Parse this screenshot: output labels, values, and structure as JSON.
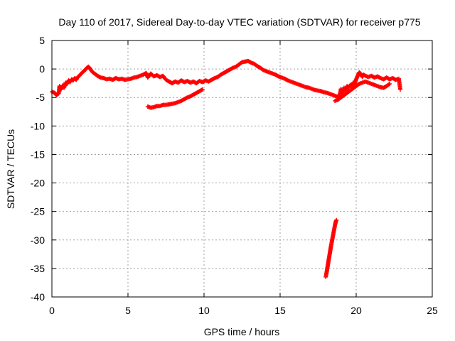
{
  "chart_data": {
    "type": "scatter",
    "title": "Day 110 of 2017, Sidereal Day-to-day VTEC variation (SDTVAR) for receiver p775",
    "xlabel": "GPS time / hours",
    "ylabel": "SDTVAR / TECUs",
    "xlim": [
      0,
      25
    ],
    "ylim": [
      -40,
      5
    ],
    "x_ticks": [
      0,
      5,
      10,
      15,
      20,
      25
    ],
    "y_ticks": [
      5,
      0,
      -5,
      -10,
      -15,
      -20,
      -25,
      -30,
      -35,
      -40
    ],
    "grid": true,
    "marker": "plus",
    "color": "#ff0000",
    "series": [
      {
        "name": "main trace",
        "points": [
          [
            0.0,
            -4.0
          ],
          [
            0.2,
            -4.2
          ],
          [
            0.3,
            -4.6
          ],
          [
            0.45,
            -4.3
          ],
          [
            0.5,
            -3.0
          ],
          [
            0.6,
            -3.6
          ],
          [
            0.7,
            -2.9
          ],
          [
            0.8,
            -3.3
          ],
          [
            0.9,
            -2.4
          ],
          [
            1.0,
            -2.6
          ],
          [
            1.1,
            -2.0
          ],
          [
            1.2,
            -2.3
          ],
          [
            1.3,
            -1.8
          ],
          [
            1.4,
            -2.0
          ],
          [
            1.5,
            -1.6
          ],
          [
            1.6,
            -1.9
          ],
          [
            1.7,
            -1.4
          ],
          [
            1.8,
            -1.2
          ],
          [
            1.9,
            -0.9
          ],
          [
            2.0,
            -0.6
          ],
          [
            2.1,
            -0.4
          ],
          [
            2.2,
            -0.1
          ],
          [
            2.3,
            0.2
          ],
          [
            2.4,
            0.4
          ],
          [
            2.5,
            0.1
          ],
          [
            2.6,
            -0.3
          ],
          [
            2.7,
            -0.6
          ],
          [
            2.8,
            -0.8
          ],
          [
            2.9,
            -1.0
          ],
          [
            3.0,
            -1.2
          ],
          [
            3.2,
            -1.5
          ],
          [
            3.4,
            -1.6
          ],
          [
            3.6,
            -1.8
          ],
          [
            3.8,
            -1.7
          ],
          [
            4.0,
            -1.9
          ],
          [
            4.2,
            -1.6
          ],
          [
            4.4,
            -1.8
          ],
          [
            4.6,
            -1.7
          ],
          [
            4.8,
            -1.9
          ],
          [
            5.0,
            -1.8
          ],
          [
            5.2,
            -1.7
          ],
          [
            5.4,
            -1.5
          ],
          [
            5.6,
            -1.4
          ],
          [
            5.8,
            -1.2
          ],
          [
            6.0,
            -1.0
          ],
          [
            6.2,
            -0.7
          ],
          [
            6.3,
            -1.5
          ],
          [
            6.5,
            -0.8
          ],
          [
            6.7,
            -1.3
          ],
          [
            6.9,
            -1.1
          ],
          [
            7.1,
            -1.4
          ],
          [
            7.3,
            -1.2
          ],
          [
            7.5,
            -1.9
          ],
          [
            7.7,
            -2.2
          ],
          [
            7.9,
            -2.5
          ],
          [
            8.1,
            -2.2
          ],
          [
            8.3,
            -2.4
          ],
          [
            8.5,
            -2.0
          ],
          [
            8.7,
            -2.3
          ],
          [
            8.9,
            -2.1
          ],
          [
            9.1,
            -2.4
          ],
          [
            9.3,
            -2.2
          ],
          [
            9.5,
            -2.5
          ],
          [
            9.7,
            -2.1
          ],
          [
            9.9,
            -2.3
          ],
          [
            10.1,
            -2.0
          ],
          [
            10.3,
            -2.2
          ],
          [
            10.5,
            -1.9
          ],
          [
            10.7,
            -1.6
          ],
          [
            10.9,
            -1.4
          ],
          [
            11.1,
            -1.0
          ],
          [
            11.3,
            -0.7
          ],
          [
            11.5,
            -0.4
          ],
          [
            11.7,
            -0.1
          ],
          [
            11.9,
            0.2
          ],
          [
            12.1,
            0.4
          ],
          [
            12.3,
            0.8
          ],
          [
            12.5,
            1.2
          ],
          [
            12.7,
            1.3
          ],
          [
            12.9,
            1.4
          ],
          [
            13.1,
            1.1
          ],
          [
            13.3,
            0.9
          ],
          [
            13.5,
            0.5
          ],
          [
            13.7,
            0.2
          ],
          [
            13.9,
            -0.2
          ],
          [
            14.1,
            -0.4
          ],
          [
            14.3,
            -0.6
          ],
          [
            14.5,
            -0.8
          ],
          [
            14.7,
            -1.0
          ],
          [
            14.9,
            -1.3
          ],
          [
            15.1,
            -1.5
          ],
          [
            15.3,
            -1.7
          ],
          [
            15.5,
            -2.0
          ],
          [
            15.7,
            -2.2
          ],
          [
            15.9,
            -2.4
          ],
          [
            16.1,
            -2.6
          ],
          [
            16.3,
            -2.8
          ],
          [
            16.5,
            -3.0
          ],
          [
            16.7,
            -3.2
          ],
          [
            16.9,
            -3.3
          ],
          [
            17.1,
            -3.5
          ],
          [
            17.3,
            -3.7
          ],
          [
            17.5,
            -3.8
          ],
          [
            17.7,
            -3.9
          ],
          [
            17.9,
            -4.1
          ],
          [
            18.1,
            -4.2
          ],
          [
            18.3,
            -4.4
          ],
          [
            18.5,
            -4.6
          ],
          [
            18.7,
            -4.8
          ],
          [
            18.9,
            -4.9
          ],
          [
            19.0,
            -3.5
          ],
          [
            19.1,
            -4.2
          ],
          [
            19.2,
            -3.3
          ],
          [
            19.3,
            -3.8
          ],
          [
            19.4,
            -3.0
          ],
          [
            19.5,
            -3.3
          ],
          [
            19.6,
            -2.8
          ],
          [
            19.7,
            -3.0
          ],
          [
            19.8,
            -2.4
          ],
          [
            19.9,
            -2.6
          ],
          [
            20.0,
            -1.8
          ],
          [
            20.1,
            -1.2
          ],
          [
            20.2,
            -0.6
          ],
          [
            20.3,
            -0.8
          ],
          [
            20.4,
            -1.4
          ],
          [
            20.5,
            -1.0
          ],
          [
            20.6,
            -1.2
          ],
          [
            20.8,
            -1.4
          ],
          [
            21.0,
            -1.2
          ],
          [
            21.2,
            -1.5
          ],
          [
            21.4,
            -1.3
          ],
          [
            21.6,
            -1.6
          ],
          [
            21.8,
            -1.8
          ],
          [
            22.0,
            -1.5
          ],
          [
            22.2,
            -1.8
          ],
          [
            22.4,
            -1.6
          ],
          [
            22.6,
            -1.9
          ],
          [
            22.8,
            -1.7
          ],
          [
            22.9,
            -3.6
          ]
        ]
      },
      {
        "name": "lower arc",
        "points": [
          [
            6.3,
            -6.6
          ],
          [
            6.5,
            -6.8
          ],
          [
            6.7,
            -6.7
          ],
          [
            6.9,
            -6.5
          ],
          [
            7.1,
            -6.5
          ],
          [
            7.3,
            -6.3
          ],
          [
            7.5,
            -6.3
          ],
          [
            7.7,
            -6.2
          ],
          [
            7.9,
            -6.1
          ],
          [
            8.1,
            -6.0
          ],
          [
            8.3,
            -5.8
          ],
          [
            8.5,
            -5.6
          ],
          [
            8.7,
            -5.3
          ],
          [
            8.9,
            -5.0
          ],
          [
            9.1,
            -4.8
          ],
          [
            9.3,
            -4.5
          ],
          [
            9.5,
            -4.2
          ],
          [
            9.7,
            -3.9
          ],
          [
            9.9,
            -3.6
          ]
        ]
      },
      {
        "name": "late-day lower branch",
        "points": [
          [
            18.6,
            -5.6
          ],
          [
            18.8,
            -5.4
          ],
          [
            19.0,
            -5.0
          ],
          [
            19.2,
            -4.6
          ],
          [
            19.4,
            -4.2
          ],
          [
            19.6,
            -3.8
          ],
          [
            19.8,
            -3.4
          ],
          [
            20.0,
            -3.0
          ],
          [
            20.2,
            -2.6
          ],
          [
            20.4,
            -2.4
          ],
          [
            20.6,
            -2.2
          ],
          [
            20.8,
            -2.4
          ],
          [
            21.0,
            -2.6
          ],
          [
            21.2,
            -2.8
          ],
          [
            21.4,
            -3.0
          ],
          [
            21.6,
            -3.2
          ],
          [
            21.8,
            -3.3
          ],
          [
            22.0,
            -3.0
          ],
          [
            22.2,
            -2.6
          ]
        ]
      },
      {
        "name": "steep drop segment",
        "points": [
          [
            18.0,
            -36.5
          ],
          [
            18.05,
            -35.8
          ],
          [
            18.1,
            -35.0
          ],
          [
            18.15,
            -34.2
          ],
          [
            18.2,
            -33.4
          ],
          [
            18.25,
            -32.6
          ],
          [
            18.3,
            -31.8
          ],
          [
            18.35,
            -31.0
          ],
          [
            18.4,
            -30.3
          ],
          [
            18.45,
            -29.6
          ],
          [
            18.5,
            -28.9
          ],
          [
            18.55,
            -28.2
          ],
          [
            18.6,
            -27.5
          ],
          [
            18.65,
            -26.9
          ],
          [
            18.7,
            -26.5
          ]
        ]
      }
    ]
  }
}
